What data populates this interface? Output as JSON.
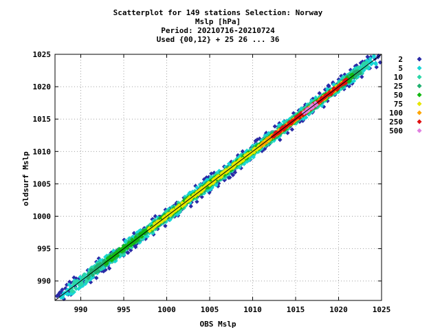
{
  "chart_data": {
    "type": "scatter",
    "title_lines": [
      "Scatterplot for  149 stations Selection: Norway",
      "Mslp [hPa]",
      "Period: 20210716-20210724",
      "Used {00,12} + 25 26 ... 36"
    ],
    "xlabel": "OBS Mslp",
    "ylabel": "oldsurf Mslp",
    "xlim": [
      987,
      1025
    ],
    "ylim": [
      987,
      1025
    ],
    "xticks": [
      990,
      995,
      1000,
      1005,
      1010,
      1015,
      1020,
      1025
    ],
    "yticks": [
      990,
      995,
      1000,
      1005,
      1010,
      1015,
      1020,
      1025
    ],
    "grid": true,
    "legend_position": "right",
    "diagonal_line": true,
    "legend": [
      {
        "label": "2",
        "color": "#2a2aa6"
      },
      {
        "label": "5",
        "color": "#17d6d6"
      },
      {
        "label": "10",
        "color": "#2ad6a6"
      },
      {
        "label": "25",
        "color": "#20b070"
      },
      {
        "label": "50",
        "color": "#12b812"
      },
      {
        "label": "75",
        "color": "#e6e600"
      },
      {
        "label": "100",
        "color": "#ffa500"
      },
      {
        "label": "250",
        "color": "#e01010"
      },
      {
        "label": "500",
        "color": "#e080e0"
      }
    ],
    "density_bands": [
      {
        "class": "2",
        "x_range": [
          987.3,
          1024.8
        ],
        "spread": 1.4
      },
      {
        "class": "5",
        "x_range": [
          987.8,
          1024.5
        ],
        "spread": 1.0
      },
      {
        "class": "10",
        "x_range": [
          989.0,
          1023.5
        ],
        "spread": 0.75
      },
      {
        "class": "25",
        "x_range": [
          991.0,
          1022.5
        ],
        "spread": 0.55
      },
      {
        "class": "50",
        "x_range": [
          993.0,
          1021.5
        ],
        "spread": 0.4
      },
      {
        "class": "75",
        "x_range": [
          998.0,
          1020.5
        ],
        "spread": 0.28
      },
      {
        "class": "100",
        "x_range": [
          1011.0,
          1019.5
        ],
        "spread": 0.25
      },
      {
        "class": "250",
        "x_range": [
          1012.5,
          1021.0
        ],
        "spread": 0.3
      },
      {
        "class": "500",
        "x_range": [
          1016.0,
          1017.5
        ],
        "spread": 0.25
      }
    ]
  }
}
